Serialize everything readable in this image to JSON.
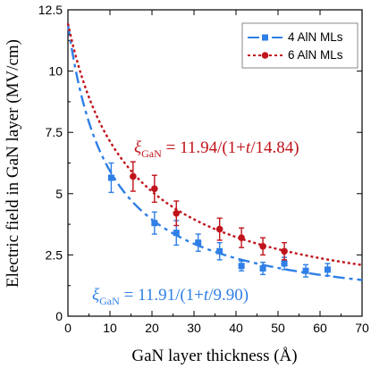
{
  "chart_data": {
    "type": "scatter",
    "xlabel": "GaN layer thickness (Å)",
    "ylabel": "Electric field in GaN layer (MV/cm)",
    "xlim": [
      0,
      70
    ],
    "ylim": [
      0,
      12.5
    ],
    "xticks": [
      "0",
      "10",
      "20",
      "30",
      "40",
      "50",
      "60",
      "70"
    ],
    "yticks": [
      "0",
      "2.5",
      "5",
      "7.5",
      "10",
      "12.5"
    ],
    "legend_position": "top-right",
    "series": [
      {
        "name": "4 AlN MLs",
        "color": "#2f7fe6",
        "marker": "square",
        "line": "long-dash",
        "fit": {
          "a": 11.91,
          "b": 9.9
        },
        "points": [
          {
            "x": 10.3,
            "y": 5.65,
            "err": 0.6
          },
          {
            "x": 20.6,
            "y": 3.8,
            "err": 0.45
          },
          {
            "x": 25.8,
            "y": 3.4,
            "err": 0.5
          },
          {
            "x": 31.0,
            "y": 3.0,
            "err": 0.35
          },
          {
            "x": 36.1,
            "y": 2.65,
            "err": 0.35
          },
          {
            "x": 41.3,
            "y": 2.05,
            "err": 0.2
          },
          {
            "x": 46.4,
            "y": 1.95,
            "err": 0.25
          },
          {
            "x": 51.5,
            "y": 2.15,
            "err": 0.25
          },
          {
            "x": 56.6,
            "y": 1.85,
            "err": 0.25
          },
          {
            "x": 61.8,
            "y": 1.9,
            "err": 0.25
          }
        ]
      },
      {
        "name": "6 AlN MLs",
        "color": "#c0141c",
        "marker": "circle",
        "line": "dotted",
        "fit": {
          "a": 11.94,
          "b": 14.84
        },
        "points": [
          {
            "x": 15.5,
            "y": 5.7,
            "err": 0.6
          },
          {
            "x": 20.6,
            "y": 5.2,
            "err": 0.55
          },
          {
            "x": 25.8,
            "y": 4.2,
            "err": 0.5
          },
          {
            "x": 36.1,
            "y": 3.55,
            "err": 0.45
          },
          {
            "x": 41.3,
            "y": 3.2,
            "err": 0.4
          },
          {
            "x": 46.4,
            "y": 2.85,
            "err": 0.35
          },
          {
            "x": 51.5,
            "y": 2.65,
            "err": 0.35
          }
        ]
      }
    ],
    "annotations": [
      {
        "symbol": "ξ",
        "sub": "GaN",
        "text": " = 11.94/(1+",
        "var": "t",
        "tail": "/14.84)",
        "color": "#c0141c"
      },
      {
        "symbol": "ξ",
        "sub": "GaN",
        "text": " = 11.91/(1+",
        "var": "t",
        "tail": "/9.90)",
        "color": "#2f7fe6"
      }
    ]
  }
}
